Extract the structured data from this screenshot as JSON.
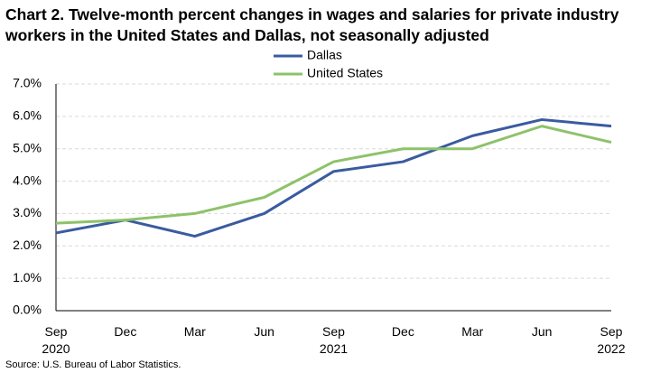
{
  "chart_data": {
    "type": "line",
    "title": "Chart 2. Twelve-month percent changes in wages and salaries for private industry workers in the United States and Dallas, not seasonally adjusted",
    "source": "Source: U.S. Bureau of Labor Statistics.",
    "categories": [
      "Sep\n2020",
      "Dec",
      "Mar",
      "Jun",
      "Sep\n2021",
      "Dec",
      "Mar",
      "Jun",
      "Sep\n2022"
    ],
    "series": [
      {
        "name": "Dallas",
        "color": "#3a5ba0",
        "values": [
          2.4,
          2.8,
          2.3,
          3.0,
          4.3,
          4.6,
          5.4,
          5.9,
          5.7
        ]
      },
      {
        "name": "United States",
        "color": "#8dc26a",
        "values": [
          2.7,
          2.8,
          3.0,
          3.5,
          4.6,
          5.0,
          5.0,
          5.7,
          5.2
        ]
      }
    ],
    "ylim": [
      0,
      7
    ],
    "yticks": [
      {
        "value": 0,
        "label": "0.0%"
      },
      {
        "value": 1,
        "label": "1.0%"
      },
      {
        "value": 2,
        "label": "2.0%"
      },
      {
        "value": 3,
        "label": "3.0%"
      },
      {
        "value": 4,
        "label": "4.0%"
      },
      {
        "value": 5,
        "label": "5.0%"
      },
      {
        "value": 6,
        "label": "6.0%"
      },
      {
        "value": 7,
        "label": "7.0%"
      }
    ],
    "grid": true
  }
}
